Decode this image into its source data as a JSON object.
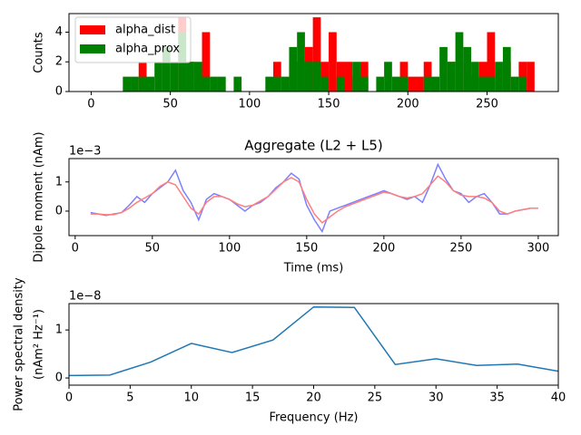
{
  "chart_data": [
    {
      "type": "histogram",
      "ylabel": "Counts",
      "xlim": [
        -14,
        295
      ],
      "ylim": [
        0,
        5.25
      ],
      "xticks": [
        0,
        50,
        100,
        150,
        200,
        250
      ],
      "yticks": [
        0,
        2,
        4
      ],
      "legend": "upper left",
      "bins": [
        20,
        25,
        30,
        35,
        40,
        45,
        50,
        55,
        60,
        65,
        70,
        75,
        80,
        85,
        90,
        95,
        100,
        105,
        110,
        115,
        120,
        125,
        130,
        135,
        140,
        145,
        150,
        155,
        160,
        165,
        170,
        175,
        180,
        185,
        190,
        195,
        200,
        205,
        210,
        215,
        220,
        225,
        230,
        235,
        240,
        245,
        250,
        255,
        260,
        265,
        270,
        275,
        280,
        285
      ],
      "series": [
        {
          "name": "alpha_dist",
          "color": "#ff0000",
          "values": [
            0,
            0,
            2,
            0,
            0,
            0,
            0,
            5,
            2,
            0,
            4,
            0,
            0,
            0,
            0,
            0,
            0,
            0,
            0,
            2,
            0,
            2,
            2,
            3,
            5,
            2,
            4,
            2,
            2,
            1,
            2,
            0,
            0,
            0,
            0,
            2,
            1,
            1,
            2,
            0,
            0,
            2,
            0,
            2,
            1,
            2,
            4,
            0,
            2,
            0,
            2,
            2,
            0
          ]
        },
        {
          "name": "alpha_prox",
          "color": "#008000",
          "values": [
            1,
            1,
            1,
            1,
            2,
            3,
            2,
            4,
            2,
            2,
            1,
            1,
            1,
            0,
            1,
            0,
            0,
            0,
            1,
            1,
            1,
            3,
            4,
            2,
            2,
            1,
            0,
            1,
            0,
            2,
            1,
            0,
            1,
            2,
            1,
            1,
            0,
            0,
            1,
            1,
            3,
            2,
            4,
            3,
            2,
            1,
            1,
            2,
            3,
            1,
            1,
            0,
            0
          ]
        }
      ]
    },
    {
      "type": "line",
      "title": "Aggregate (L2 + L5)",
      "xlabel": "Time (ms)",
      "ylabel": "Dipole moment (nAm)",
      "offset_text": "1e−3",
      "xlim": [
        -4,
        313
      ],
      "ylim": [
        -0.84,
        1.8
      ],
      "xticks": [
        0,
        50,
        100,
        150,
        200,
        250,
        300
      ],
      "yticks": [
        0,
        1
      ],
      "x": [
        10,
        15,
        20,
        25,
        30,
        35,
        40,
        45,
        50,
        55,
        60,
        65,
        70,
        75,
        80,
        85,
        90,
        95,
        100,
        105,
        110,
        115,
        120,
        125,
        130,
        135,
        140,
        145,
        150,
        155,
        160,
        165,
        170,
        175,
        180,
        185,
        190,
        195,
        200,
        205,
        210,
        215,
        220,
        225,
        230,
        235,
        240,
        245,
        250,
        255,
        260,
        265,
        270,
        275,
        280,
        285,
        290,
        295,
        300
      ],
      "series": [
        {
          "color": "#7f7fff",
          "values": [
            -0.05,
            -0.1,
            -0.15,
            -0.1,
            -0.05,
            0.2,
            0.5,
            0.3,
            0.6,
            0.8,
            1.0,
            1.4,
            0.7,
            0.3,
            -0.3,
            0.4,
            0.6,
            0.5,
            0.4,
            0.2,
            0.0,
            0.2,
            0.3,
            0.5,
            0.8,
            1.0,
            1.3,
            1.1,
            0.2,
            -0.3,
            -0.7,
            0.0,
            0.1,
            0.2,
            0.3,
            0.4,
            0.5,
            0.6,
            0.7,
            0.6,
            0.5,
            0.4,
            0.5,
            0.3,
            0.9,
            1.6,
            1.1,
            0.7,
            0.6,
            0.3,
            0.5,
            0.6,
            0.3,
            -0.1,
            -0.1,
            0.0,
            0.05,
            0.1,
            0.1
          ]
        },
        {
          "color": "#ff7f7f",
          "values": [
            -0.1,
            -0.1,
            -0.12,
            -0.12,
            -0.05,
            0.1,
            0.3,
            0.45,
            0.6,
            0.85,
            1.0,
            0.9,
            0.5,
            0.1,
            -0.1,
            0.3,
            0.5,
            0.5,
            0.4,
            0.25,
            0.15,
            0.2,
            0.35,
            0.5,
            0.75,
            1.0,
            1.15,
            1.0,
            0.4,
            -0.1,
            -0.4,
            -0.2,
            0.0,
            0.15,
            0.25,
            0.35,
            0.45,
            0.55,
            0.65,
            0.6,
            0.5,
            0.45,
            0.5,
            0.6,
            0.9,
            1.2,
            1.0,
            0.7,
            0.55,
            0.5,
            0.5,
            0.45,
            0.3,
            0.0,
            -0.1,
            0.0,
            0.05,
            0.1,
            0.1
          ]
        }
      ]
    },
    {
      "type": "line",
      "xlabel": "Frequency (Hz)",
      "ylabel": [
        "Power spectral density",
        "(nAm² Hz⁻¹)"
      ],
      "offset_text": "1e−8",
      "xlim": [
        0,
        40
      ],
      "ylim": [
        -0.15,
        1.55
      ],
      "xticks": [
        0,
        5,
        10,
        15,
        20,
        25,
        30,
        35,
        40
      ],
      "yticks": [
        0,
        1
      ],
      "x": [
        0,
        3.33,
        6.67,
        10,
        13.33,
        16.67,
        20,
        23.33,
        26.67,
        30,
        33.33,
        36.67,
        40
      ],
      "series": [
        {
          "color": "#1f77b4",
          "values": [
            0.05,
            0.06,
            0.33,
            0.72,
            0.53,
            0.79,
            1.48,
            1.47,
            0.28,
            0.4,
            0.26,
            0.29,
            0.14
          ]
        }
      ]
    }
  ]
}
